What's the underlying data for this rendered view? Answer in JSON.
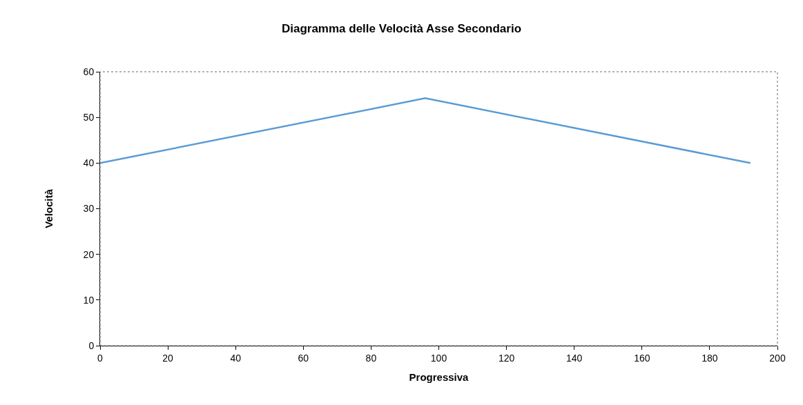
{
  "chart_data": {
    "type": "line",
    "title": "Diagramma delle Velocità Asse Secondario",
    "xlabel": "Progressiva",
    "ylabel": "Velocità",
    "x": [
      0,
      96,
      192
    ],
    "series": [
      {
        "color": "#5b9bd5",
        "values": [
          40,
          54.2,
          40
        ]
      }
    ],
    "xlim": [
      0,
      200
    ],
    "xticks": [
      0,
      20,
      40,
      60,
      80,
      100,
      120,
      140,
      160,
      180,
      200
    ],
    "ylim": [
      0,
      60
    ],
    "yticks": [
      0,
      10,
      20,
      30,
      40,
      50,
      60
    ],
    "marker": "none",
    "line_style": "solid"
  }
}
